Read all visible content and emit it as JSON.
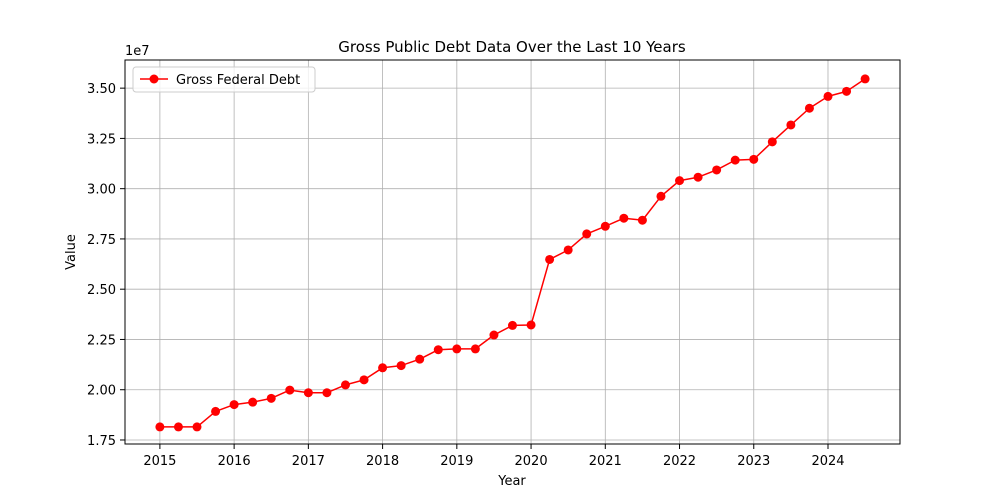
{
  "chart_data": {
    "type": "line",
    "title": "Gross Public Debt Data Over the Last 10 Years",
    "xlabel": "Year",
    "ylabel": "Value",
    "y_offset_label": "1e7",
    "xlim": [
      2014.53,
      2024.97
    ],
    "ylim": [
      17300000,
      36400000
    ],
    "x_ticks": [
      2015,
      2016,
      2017,
      2018,
      2019,
      2020,
      2021,
      2022,
      2023,
      2024
    ],
    "x_tick_labels": [
      "2015",
      "2016",
      "2017",
      "2018",
      "2019",
      "2020",
      "2021",
      "2022",
      "2023",
      "2024"
    ],
    "y_ticks": [
      17500000,
      20000000,
      22500000,
      25000000,
      27500000,
      30000000,
      32500000,
      35000000
    ],
    "y_tick_labels": [
      "1.75",
      "2.00",
      "2.25",
      "2.50",
      "2.75",
      "3.00",
      "3.25",
      "3.50"
    ],
    "grid": true,
    "legend_position": "top-left",
    "series": [
      {
        "name": "Gross Federal Debt",
        "color": "#ff0000",
        "marker": "circle",
        "x": [
          2015.0,
          2015.25,
          2015.5,
          2015.75,
          2016.0,
          2016.25,
          2016.5,
          2016.75,
          2017.0,
          2017.25,
          2017.5,
          2017.75,
          2018.0,
          2018.25,
          2018.5,
          2018.75,
          2019.0,
          2019.25,
          2019.5,
          2019.75,
          2020.0,
          2020.25,
          2020.5,
          2020.75,
          2021.0,
          2021.25,
          2021.5,
          2021.75,
          2022.0,
          2022.25,
          2022.5,
          2022.75,
          2023.0,
          2023.25,
          2023.5,
          2023.75,
          2024.0,
          2024.25,
          2024.5
        ],
        "y": [
          18150000,
          18150000,
          18150000,
          18920000,
          19260000,
          19380000,
          19570000,
          19980000,
          19850000,
          19850000,
          20240000,
          20490000,
          21090000,
          21200000,
          21520000,
          21990000,
          22030000,
          22030000,
          22720000,
          23200000,
          23220000,
          26480000,
          26950000,
          27750000,
          28130000,
          28530000,
          28430000,
          29620000,
          30400000,
          30570000,
          30930000,
          31420000,
          31460000,
          32330000,
          33170000,
          34000000,
          34590000,
          34840000,
          35460000
        ]
      }
    ]
  }
}
